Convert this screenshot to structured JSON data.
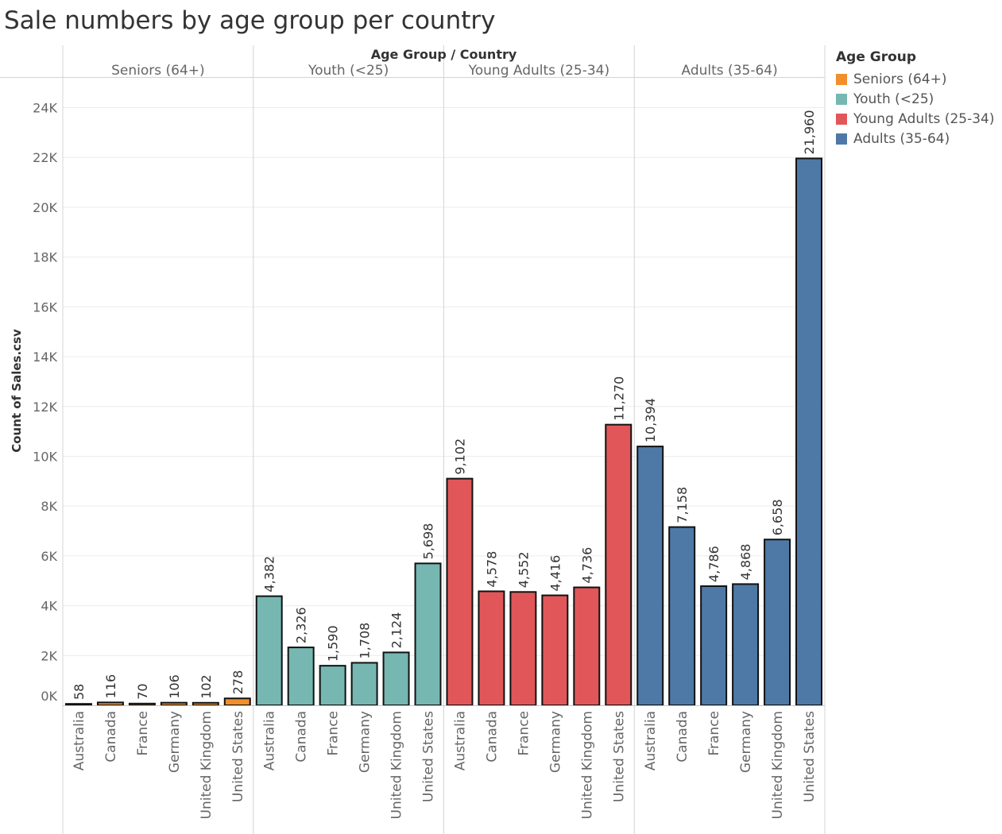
{
  "title": "Sale numbers by age group per country",
  "legend": {
    "title": "Age Group",
    "items": [
      {
        "label": "Seniors (64+)",
        "color": "#f28e2b"
      },
      {
        "label": "Youth (<25)",
        "color": "#76b7b2"
      },
      {
        "label": "Young Adults (25-34)",
        "color": "#e15759"
      },
      {
        "label": "Adults (35-64)",
        "color": "#4e79a7"
      }
    ]
  },
  "chart_data": {
    "type": "bar",
    "column_header": "Age Group  /  Country",
    "ylabel": "Count of Sales.csv",
    "ylim": [
      0,
      24000
    ],
    "y_ticks": [
      {
        "value": 0,
        "label": "0K"
      },
      {
        "value": 2000,
        "label": "2K"
      },
      {
        "value": 4000,
        "label": "4K"
      },
      {
        "value": 6000,
        "label": "6K"
      },
      {
        "value": 8000,
        "label": "8K"
      },
      {
        "value": 10000,
        "label": "10K"
      },
      {
        "value": 12000,
        "label": "12K"
      },
      {
        "value": 14000,
        "label": "14K"
      },
      {
        "value": 16000,
        "label": "16K"
      },
      {
        "value": 18000,
        "label": "18K"
      },
      {
        "value": 20000,
        "label": "20K"
      },
      {
        "value": 22000,
        "label": "22K"
      },
      {
        "value": 24000,
        "label": "24K"
      }
    ],
    "categories": [
      "Australia",
      "Canada",
      "France",
      "Germany",
      "United Kingdom",
      "United States"
    ],
    "groups": [
      {
        "name": "Seniors (64+)",
        "color": "#f28e2b",
        "values": [
          58,
          116,
          70,
          106,
          102,
          278
        ],
        "labels": [
          "58",
          "116",
          "70",
          "106",
          "102",
          "278"
        ]
      },
      {
        "name": "Youth (<25)",
        "color": "#76b7b2",
        "values": [
          4382,
          2326,
          1590,
          1708,
          2124,
          5698
        ],
        "labels": [
          "4,382",
          "2,326",
          "1,590",
          "1,708",
          "2,124",
          "5,698"
        ]
      },
      {
        "name": "Young Adults (25-34)",
        "color": "#e15759",
        "values": [
          9102,
          4578,
          4552,
          4416,
          4736,
          11270
        ],
        "labels": [
          "9,102",
          "4,578",
          "4,552",
          "4,416",
          "4,736",
          "11,270"
        ]
      },
      {
        "name": "Adults (35-64)",
        "color": "#4e79a7",
        "values": [
          10394,
          7158,
          4786,
          4868,
          6658,
          21960
        ],
        "labels": [
          "10,394",
          "7,158",
          "4,786",
          "4,868",
          "6,658",
          "21,960"
        ]
      }
    ],
    "grid": true,
    "legend_position": "right"
  }
}
